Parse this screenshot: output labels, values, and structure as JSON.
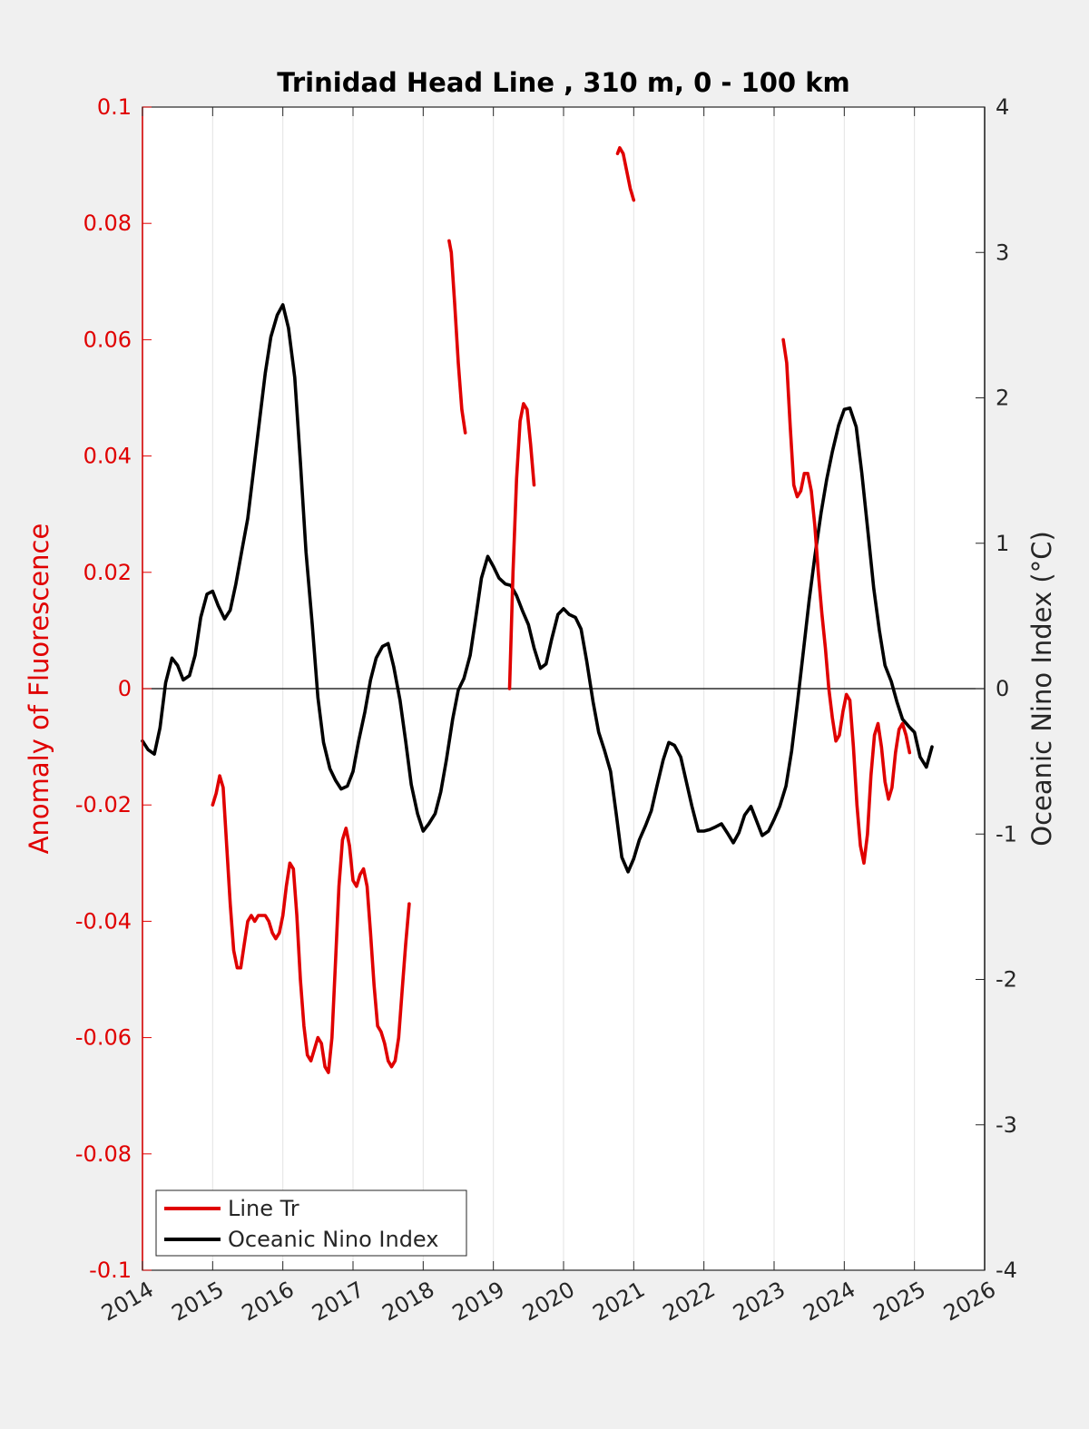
{
  "chart_data": {
    "type": "line",
    "title": "Trinidad Head Line , 310 m, 0 - 100 km",
    "ylabel_left": "Anomaly of Fluorescence",
    "ylabel_right": "Oceanic Nino Index (°C)",
    "xlim": [
      2014,
      2026
    ],
    "ylim_left": [
      -0.1,
      0.1
    ],
    "ylim_right": [
      -4,
      4
    ],
    "grid": "vertical",
    "legend_position": "bottom-left",
    "x_ticks": [
      "2014",
      "2015",
      "2016",
      "2017",
      "2018",
      "2019",
      "2020",
      "2021",
      "2022",
      "2023",
      "2024",
      "2025",
      "2026"
    ],
    "y_left_ticks": [
      "-0.1",
      "-0.08",
      "-0.06",
      "-0.04",
      "-0.02",
      "0",
      "0.02",
      "0.04",
      "0.06",
      "0.08",
      "0.1"
    ],
    "y_right_ticks": [
      "-4",
      "-3",
      "-2",
      "-1",
      "0",
      "1",
      "2",
      "3",
      "4"
    ],
    "colors": {
      "fluorescence": "#e00000",
      "oni": "#000000",
      "left_axis": "#e00000",
      "right_axis": "#262626"
    },
    "series": [
      {
        "name": "Line Tr",
        "axis": "left",
        "segments": [
          [
            [
              2015.0,
              -0.02
            ],
            [
              2015.05,
              -0.018
            ],
            [
              2015.1,
              -0.015
            ],
            [
              2015.15,
              -0.017
            ],
            [
              2015.2,
              -0.027
            ],
            [
              2015.25,
              -0.037
            ],
            [
              2015.3,
              -0.045
            ],
            [
              2015.35,
              -0.048
            ],
            [
              2015.4,
              -0.048
            ],
            [
              2015.45,
              -0.044
            ],
            [
              2015.5,
              -0.04
            ],
            [
              2015.55,
              -0.039
            ],
            [
              2015.6,
              -0.04
            ],
            [
              2015.65,
              -0.039
            ],
            [
              2015.75,
              -0.039
            ],
            [
              2015.8,
              -0.04
            ],
            [
              2015.85,
              -0.042
            ],
            [
              2015.9,
              -0.043
            ],
            [
              2015.95,
              -0.042
            ],
            [
              2016.0,
              -0.039
            ],
            [
              2016.05,
              -0.034
            ],
            [
              2016.1,
              -0.03
            ],
            [
              2016.15,
              -0.031
            ],
            [
              2016.2,
              -0.039
            ],
            [
              2016.25,
              -0.05
            ],
            [
              2016.3,
              -0.058
            ],
            [
              2016.35,
              -0.063
            ],
            [
              2016.4,
              -0.064
            ],
            [
              2016.45,
              -0.062
            ],
            [
              2016.5,
              -0.06
            ],
            [
              2016.55,
              -0.061
            ],
            [
              2016.6,
              -0.065
            ],
            [
              2016.65,
              -0.066
            ],
            [
              2016.7,
              -0.06
            ],
            [
              2016.75,
              -0.047
            ],
            [
              2016.8,
              -0.034
            ],
            [
              2016.85,
              -0.026
            ],
            [
              2016.9,
              -0.024
            ],
            [
              2016.95,
              -0.027
            ],
            [
              2017.0,
              -0.033
            ],
            [
              2017.05,
              -0.034
            ],
            [
              2017.1,
              -0.032
            ],
            [
              2017.15,
              -0.031
            ],
            [
              2017.2,
              -0.034
            ],
            [
              2017.25,
              -0.042
            ],
            [
              2017.3,
              -0.051
            ],
            [
              2017.35,
              -0.058
            ],
            [
              2017.4,
              -0.059
            ],
            [
              2017.45,
              -0.061
            ],
            [
              2017.5,
              -0.064
            ],
            [
              2017.55,
              -0.065
            ],
            [
              2017.6,
              -0.064
            ],
            [
              2017.65,
              -0.06
            ],
            [
              2017.7,
              -0.052
            ],
            [
              2017.75,
              -0.044
            ],
            [
              2017.8,
              -0.037
            ]
          ],
          [
            [
              2018.37,
              0.077
            ],
            [
              2018.4,
              0.075
            ],
            [
              2018.45,
              0.066
            ],
            [
              2018.5,
              0.056
            ],
            [
              2018.55,
              0.048
            ],
            [
              2018.6,
              0.044
            ]
          ],
          [
            [
              2019.23,
              0.0
            ],
            [
              2019.28,
              0.02
            ],
            [
              2019.33,
              0.036
            ],
            [
              2019.38,
              0.046
            ],
            [
              2019.43,
              0.049
            ],
            [
              2019.48,
              0.048
            ],
            [
              2019.53,
              0.042
            ],
            [
              2019.58,
              0.035
            ]
          ],
          [
            [
              2020.77,
              0.092
            ],
            [
              2020.8,
              0.093
            ],
            [
              2020.85,
              0.092
            ],
            [
              2020.9,
              0.089
            ],
            [
              2020.95,
              0.086
            ],
            [
              2021.0,
              0.084
            ]
          ],
          [
            [
              2023.13,
              0.06
            ],
            [
              2023.18,
              0.056
            ],
            [
              2023.23,
              0.045
            ],
            [
              2023.28,
              0.035
            ],
            [
              2023.33,
              0.033
            ],
            [
              2023.38,
              0.034
            ],
            [
              2023.43,
              0.037
            ],
            [
              2023.48,
              0.037
            ],
            [
              2023.53,
              0.034
            ],
            [
              2023.58,
              0.028
            ],
            [
              2023.63,
              0.02
            ],
            [
              2023.68,
              0.013
            ],
            [
              2023.73,
              0.007
            ],
            [
              2023.78,
              0.0
            ],
            [
              2023.83,
              -0.005
            ],
            [
              2023.88,
              -0.009
            ],
            [
              2023.93,
              -0.008
            ],
            [
              2023.98,
              -0.004
            ],
            [
              2024.03,
              -0.001
            ],
            [
              2024.08,
              -0.002
            ],
            [
              2024.13,
              -0.01
            ],
            [
              2024.18,
              -0.02
            ],
            [
              2024.23,
              -0.027
            ],
            [
              2024.28,
              -0.03
            ],
            [
              2024.33,
              -0.025
            ],
            [
              2024.38,
              -0.015
            ],
            [
              2024.43,
              -0.008
            ],
            [
              2024.48,
              -0.006
            ],
            [
              2024.53,
              -0.01
            ],
            [
              2024.58,
              -0.016
            ],
            [
              2024.63,
              -0.019
            ],
            [
              2024.68,
              -0.017
            ],
            [
              2024.73,
              -0.011
            ],
            [
              2024.78,
              -0.007
            ],
            [
              2024.83,
              -0.006
            ],
            [
              2024.88,
              -0.008
            ],
            [
              2024.93,
              -0.011
            ]
          ]
        ]
      },
      {
        "name": "Oceanic Nino Index",
        "axis": "right",
        "segments": [
          [
            [
              2014.0,
              -0.36
            ],
            [
              2014.08,
              -0.42
            ],
            [
              2014.17,
              -0.45
            ],
            [
              2014.25,
              -0.27
            ],
            [
              2014.33,
              0.04
            ],
            [
              2014.42,
              0.21
            ],
            [
              2014.5,
              0.16
            ],
            [
              2014.58,
              0.06
            ],
            [
              2014.67,
              0.09
            ],
            [
              2014.75,
              0.23
            ],
            [
              2014.83,
              0.49
            ],
            [
              2014.92,
              0.65
            ],
            [
              2015.0,
              0.67
            ],
            [
              2015.08,
              0.57
            ],
            [
              2015.17,
              0.48
            ],
            [
              2015.25,
              0.54
            ],
            [
              2015.33,
              0.72
            ],
            [
              2015.42,
              0.96
            ],
            [
              2015.5,
              1.17
            ],
            [
              2015.58,
              1.49
            ],
            [
              2015.67,
              1.85
            ],
            [
              2015.75,
              2.17
            ],
            [
              2015.83,
              2.42
            ],
            [
              2015.92,
              2.57
            ],
            [
              2016.0,
              2.64
            ],
            [
              2016.08,
              2.48
            ],
            [
              2016.17,
              2.14
            ],
            [
              2016.25,
              1.56
            ],
            [
              2016.33,
              0.94
            ],
            [
              2016.42,
              0.44
            ],
            [
              2016.5,
              -0.06
            ],
            [
              2016.58,
              -0.37
            ],
            [
              2016.67,
              -0.55
            ],
            [
              2016.75,
              -0.63
            ],
            [
              2016.83,
              -0.69
            ],
            [
              2016.92,
              -0.67
            ],
            [
              2017.0,
              -0.57
            ],
            [
              2017.08,
              -0.36
            ],
            [
              2017.17,
              -0.16
            ],
            [
              2017.25,
              0.06
            ],
            [
              2017.33,
              0.21
            ],
            [
              2017.42,
              0.29
            ],
            [
              2017.5,
              0.31
            ],
            [
              2017.58,
              0.15
            ],
            [
              2017.67,
              -0.08
            ],
            [
              2017.75,
              -0.36
            ],
            [
              2017.83,
              -0.66
            ],
            [
              2017.92,
              -0.86
            ],
            [
              2018.0,
              -0.98
            ],
            [
              2018.08,
              -0.93
            ],
            [
              2018.17,
              -0.86
            ],
            [
              2018.25,
              -0.71
            ],
            [
              2018.33,
              -0.49
            ],
            [
              2018.42,
              -0.21
            ],
            [
              2018.5,
              -0.01
            ],
            [
              2018.58,
              0.07
            ],
            [
              2018.67,
              0.23
            ],
            [
              2018.75,
              0.49
            ],
            [
              2018.83,
              0.76
            ],
            [
              2018.92,
              0.91
            ],
            [
              2019.0,
              0.84
            ],
            [
              2019.08,
              0.76
            ],
            [
              2019.17,
              0.72
            ],
            [
              2019.25,
              0.71
            ],
            [
              2019.33,
              0.64
            ],
            [
              2019.42,
              0.53
            ],
            [
              2019.5,
              0.44
            ],
            [
              2019.58,
              0.28
            ],
            [
              2019.67,
              0.14
            ],
            [
              2019.75,
              0.17
            ],
            [
              2019.83,
              0.34
            ],
            [
              2019.92,
              0.51
            ],
            [
              2020.0,
              0.55
            ],
            [
              2020.08,
              0.51
            ],
            [
              2020.17,
              0.49
            ],
            [
              2020.25,
              0.41
            ],
            [
              2020.33,
              0.19
            ],
            [
              2020.42,
              -0.09
            ],
            [
              2020.5,
              -0.3
            ],
            [
              2020.58,
              -0.42
            ],
            [
              2020.67,
              -0.57
            ],
            [
              2020.75,
              -0.86
            ],
            [
              2020.83,
              -1.16
            ],
            [
              2020.92,
              -1.26
            ],
            [
              2021.0,
              -1.17
            ],
            [
              2021.08,
              -1.04
            ],
            [
              2021.17,
              -0.94
            ],
            [
              2021.25,
              -0.84
            ],
            [
              2021.33,
              -0.67
            ],
            [
              2021.42,
              -0.49
            ],
            [
              2021.5,
              -0.37
            ],
            [
              2021.58,
              -0.39
            ],
            [
              2021.67,
              -0.47
            ],
            [
              2021.75,
              -0.64
            ],
            [
              2021.83,
              -0.81
            ],
            [
              2021.92,
              -0.98
            ],
            [
              2022.0,
              -0.98
            ],
            [
              2022.08,
              -0.97
            ],
            [
              2022.17,
              -0.95
            ],
            [
              2022.25,
              -0.93
            ],
            [
              2022.33,
              -0.99
            ],
            [
              2022.42,
              -1.06
            ],
            [
              2022.5,
              -0.99
            ],
            [
              2022.58,
              -0.87
            ],
            [
              2022.67,
              -0.81
            ],
            [
              2022.75,
              -0.91
            ],
            [
              2022.83,
              -1.01
            ],
            [
              2022.92,
              -0.98
            ],
            [
              2023.0,
              -0.9
            ],
            [
              2023.08,
              -0.81
            ],
            [
              2023.17,
              -0.67
            ],
            [
              2023.25,
              -0.43
            ],
            [
              2023.33,
              -0.11
            ],
            [
              2023.42,
              0.27
            ],
            [
              2023.5,
              0.61
            ],
            [
              2023.58,
              0.91
            ],
            [
              2023.67,
              1.21
            ],
            [
              2023.75,
              1.44
            ],
            [
              2023.83,
              1.63
            ],
            [
              2023.92,
              1.81
            ],
            [
              2024.0,
              1.92
            ],
            [
              2024.08,
              1.93
            ],
            [
              2024.17,
              1.8
            ],
            [
              2024.25,
              1.48
            ],
            [
              2024.33,
              1.11
            ],
            [
              2024.42,
              0.69
            ],
            [
              2024.5,
              0.4
            ],
            [
              2024.58,
              0.16
            ],
            [
              2024.67,
              0.05
            ],
            [
              2024.75,
              -0.09
            ],
            [
              2024.83,
              -0.21
            ],
            [
              2024.92,
              -0.26
            ],
            [
              2025.0,
              -0.3
            ],
            [
              2025.08,
              -0.47
            ],
            [
              2025.17,
              -0.54
            ],
            [
              2025.25,
              -0.4
            ]
          ]
        ]
      }
    ]
  },
  "legend": {
    "items": [
      {
        "label": "Line Tr",
        "color": "#e00000"
      },
      {
        "label": "Oceanic Nino Index",
        "color": "#000000"
      }
    ]
  }
}
